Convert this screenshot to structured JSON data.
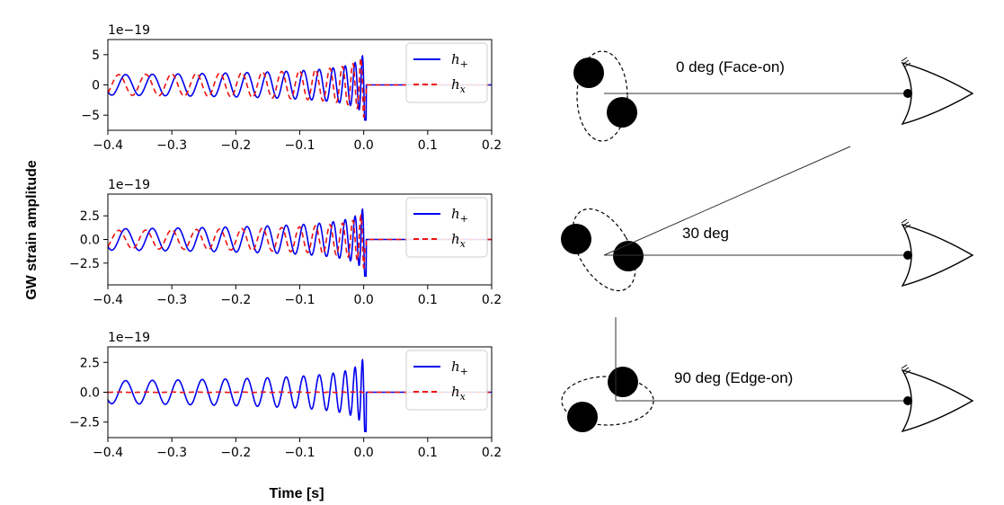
{
  "figure": {
    "ylabel": "GW strain amplitude",
    "xlabel": "Time [s]"
  },
  "chart_data": [
    {
      "type": "line",
      "offset_text": "1e−19",
      "xlim": [
        -0.4,
        0.2
      ],
      "ylim": [
        -7.5,
        7.5
      ],
      "xticks": [
        -0.4,
        -0.3,
        -0.2,
        -0.1,
        0.0,
        0.1,
        0.2
      ],
      "xtick_labels": [
        "−0.4",
        "−0.3",
        "−0.2",
        "−0.1",
        "0.0",
        "0.1",
        "0.2"
      ],
      "yticks": [
        5,
        0,
        -5
      ],
      "ytick_labels": [
        "5",
        "0",
        "−5"
      ],
      "series": [
        {
          "name": "h_+",
          "label_main": "h",
          "label_sub": "+",
          "color": "#0000ee",
          "dash": "",
          "peak": 6.0,
          "phase": 0.0
        },
        {
          "name": "h_x",
          "label_main": "h",
          "label_sub": "x",
          "color": "#ee1111",
          "dash": "6,4",
          "peak": 6.0,
          "phase": 1.5708
        }
      ],
      "legend": "upper-right"
    },
    {
      "type": "line",
      "offset_text": "1e−19",
      "xlim": [
        -0.4,
        0.2
      ],
      "ylim": [
        -4.8,
        4.8
      ],
      "xticks": [
        -0.4,
        -0.3,
        -0.2,
        -0.1,
        0.0,
        0.1,
        0.2
      ],
      "xtick_labels": [
        "−0.4",
        "−0.3",
        "−0.2",
        "−0.1",
        "0.0",
        "0.1",
        "0.2"
      ],
      "yticks": [
        2.5,
        0.0,
        -2.5
      ],
      "ytick_labels": [
        "2.5",
        "0.0",
        "−2.5"
      ],
      "series": [
        {
          "name": "h_+",
          "label_main": "h",
          "label_sub": "+",
          "color": "#0000ee",
          "dash": "",
          "peak": 4.0,
          "phase": 0.0
        },
        {
          "name": "h_x",
          "label_main": "h",
          "label_sub": "x",
          "color": "#ee1111",
          "dash": "6,4",
          "peak": 3.4,
          "phase": 1.5708
        }
      ],
      "legend": "upper-right"
    },
    {
      "type": "line",
      "offset_text": "1e−19",
      "xlim": [
        -0.4,
        0.2
      ],
      "ylim": [
        -3.8,
        3.8
      ],
      "xticks": [
        -0.4,
        -0.3,
        -0.2,
        -0.1,
        0.0,
        0.1,
        0.2
      ],
      "xtick_labels": [
        "−0.4",
        "−0.3",
        "−0.2",
        "−0.1",
        "0.0",
        "0.1",
        "0.2"
      ],
      "yticks": [
        2.5,
        0.0,
        -2.5
      ],
      "ytick_labels": [
        "2.5",
        "0.0",
        "−2.5"
      ],
      "series": [
        {
          "name": "h_+",
          "label_main": "h",
          "label_sub": "+",
          "color": "#0000ee",
          "dash": "",
          "peak": 3.4,
          "phase": 0.0
        },
        {
          "name": "h_x",
          "label_main": "h",
          "label_sub": "x",
          "color": "#ee1111",
          "dash": "6,4",
          "peak": 0.05,
          "phase": 1.5708
        }
      ],
      "legend": "upper-right"
    }
  ],
  "diagram": {
    "labels": [
      "0 deg (Face-on)",
      "30 deg",
      "90 deg (Edge-on)"
    ]
  }
}
